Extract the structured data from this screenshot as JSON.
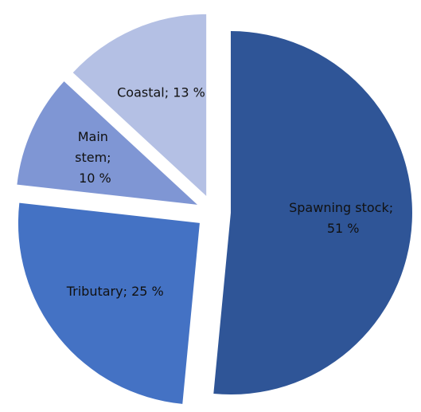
{
  "chart_data": {
    "type": "pie",
    "values": [
      51,
      25,
      10,
      13
    ],
    "value_labels": [
      "Spawning stock; 51 %",
      "Tributary; 25 %",
      "Main stem; 10 %",
      "Coastal; 13 %"
    ],
    "colors": [
      "#2f5597",
      "#4472c4",
      "#7f96d4",
      "#b4c0e4"
    ]
  }
}
